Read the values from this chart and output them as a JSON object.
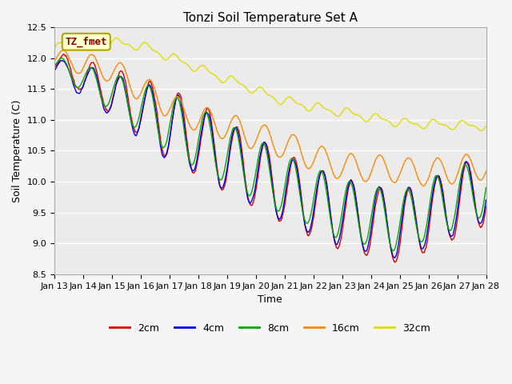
{
  "title": "Tonzi Soil Temperature Set A",
  "xlabel": "Time",
  "ylabel": "Soil Temperature (C)",
  "ylim": [
    8.5,
    12.5
  ],
  "x_tick_labels": [
    "Jan 13",
    "Jan 14",
    "Jan 15",
    "Jan 16",
    "Jan 17",
    "Jan 18",
    "Jan 19",
    "Jan 20",
    "Jan 21",
    "Jan 22",
    "Jan 23",
    "Jan 24",
    "Jan 25",
    "Jan 26",
    "Jan 27",
    "Jan 28"
  ],
  "legend_labels": [
    "2cm",
    "4cm",
    "8cm",
    "16cm",
    "32cm"
  ],
  "line_colors": [
    "#dd0000",
    "#0000dd",
    "#00aa00",
    "#ff8800",
    "#dddd00"
  ],
  "line_widths": [
    1.0,
    1.0,
    1.0,
    1.0,
    1.0
  ],
  "plot_bg_color": "#ebebeb",
  "fig_bg_color": "#f5f5f5",
  "annotation_text": "TZ_fmet",
  "annotation_color": "#880000",
  "annotation_bg": "#ffffcc",
  "annotation_border": "#aaa800",
  "title_fontsize": 11,
  "axis_label_fontsize": 9,
  "tick_fontsize": 8,
  "legend_fontsize": 9
}
